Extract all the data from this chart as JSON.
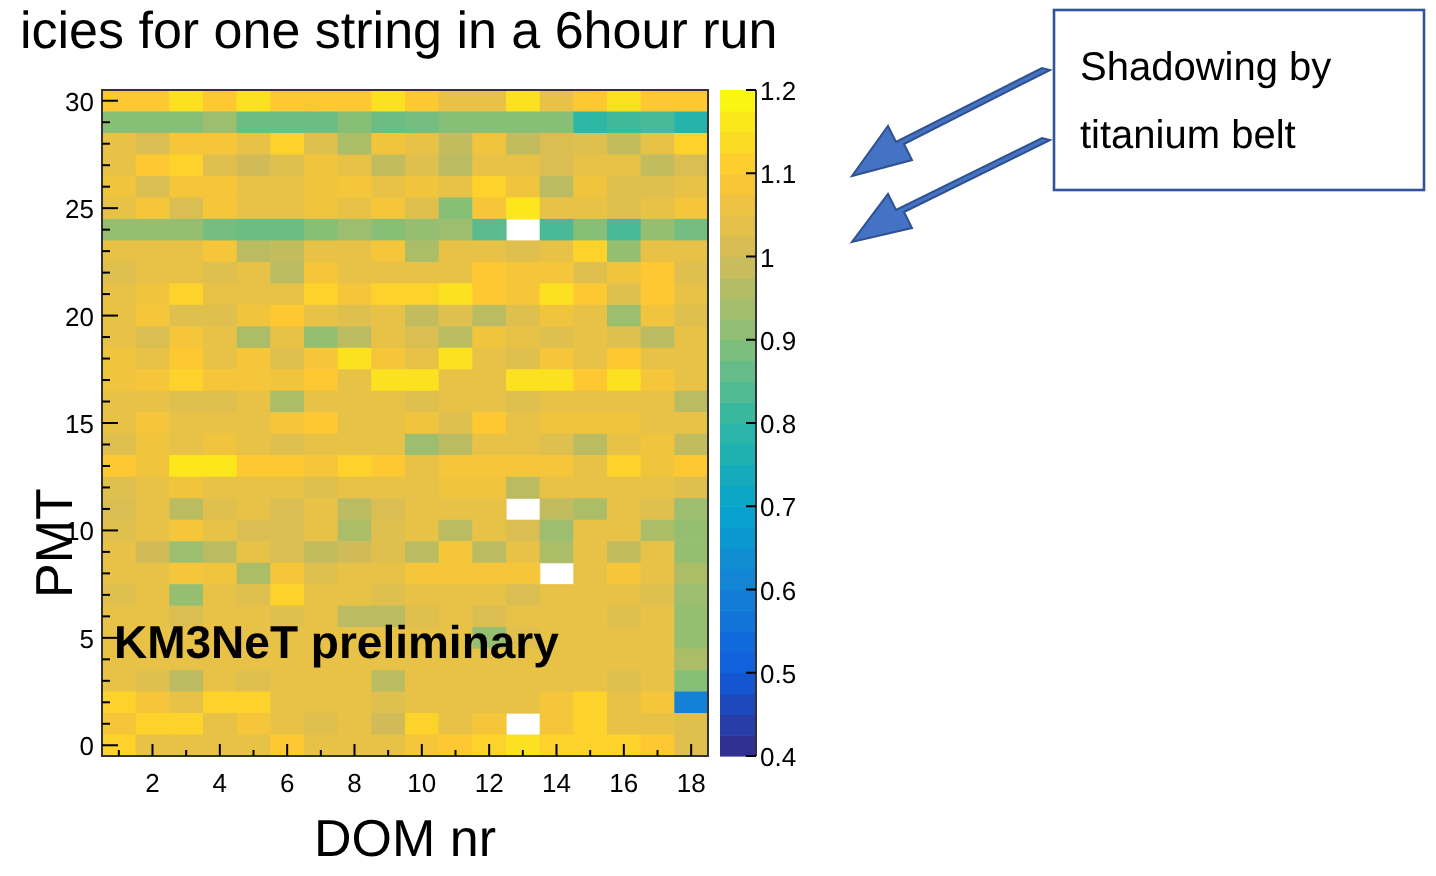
{
  "chart_data": {
    "type": "heatmap",
    "title": "icies for one string in a 6hour run",
    "xlabel": "DOM nr",
    "ylabel": "PMT",
    "annotations": [
      "KM3NeT preliminary",
      "Shadowing by titanium belt"
    ],
    "categories": [
      null,
      "2",
      null,
      "4",
      null,
      "6",
      null,
      "8",
      null,
      "10",
      null,
      "12",
      null,
      "14",
      null,
      "16",
      null,
      "18"
    ],
    "y_categories": [
      "30",
      null,
      null,
      null,
      null,
      "25",
      null,
      null,
      null,
      null,
      "20",
      null,
      null,
      null,
      null,
      "15",
      null,
      null,
      null,
      null,
      "10",
      null,
      null,
      null,
      null,
      "5",
      null,
      null,
      null,
      null,
      "0"
    ],
    "clim": [
      0.4,
      1.2
    ],
    "cticks": [
      0.4,
      0.5,
      0.6,
      0.7,
      0.8,
      0.9,
      1,
      1.1,
      1.2
    ],
    "cells": [
      [
        1.1,
        1.1,
        1.15,
        1.1,
        1.15,
        1.1,
        1.1,
        1.1,
        1.15,
        1.1,
        1.05,
        1.05,
        1.15,
        1.05,
        1.1,
        1.15,
        1.1,
        1.1
      ],
      [
        0.9,
        0.9,
        0.9,
        0.93,
        0.87,
        0.87,
        0.87,
        0.9,
        0.87,
        0.88,
        0.9,
        0.9,
        0.9,
        0.9,
        0.8,
        0.82,
        0.83,
        0.78
      ],
      [
        1.05,
        1.02,
        1.08,
        1.08,
        1.05,
        1.12,
        1.03,
        0.95,
        1.07,
        1.05,
        0.98,
        1.07,
        0.98,
        1.02,
        1.03,
        0.98,
        1.05,
        1.12
      ],
      [
        1.05,
        1.1,
        1.12,
        1.03,
        1.0,
        1.03,
        1.07,
        1.05,
        0.98,
        1.03,
        0.97,
        1.05,
        1.05,
        1.02,
        1.05,
        1.05,
        0.98,
        1.02
      ],
      [
        1.07,
        1.02,
        1.08,
        1.08,
        1.05,
        1.05,
        1.07,
        1.08,
        1.05,
        1.07,
        1.05,
        1.12,
        1.07,
        0.97,
        1.07,
        1.03,
        1.03,
        1.05
      ],
      [
        1.05,
        1.08,
        1.02,
        1.08,
        1.05,
        1.05,
        1.07,
        1.05,
        1.08,
        1.03,
        0.9,
        1.08,
        1.16,
        1.05,
        1.05,
        1.03,
        1.05,
        1.08
      ],
      [
        0.92,
        0.92,
        0.92,
        0.88,
        0.87,
        0.87,
        0.9,
        0.93,
        0.9,
        0.92,
        0.93,
        0.85,
        null,
        0.83,
        0.9,
        0.83,
        0.92,
        0.88
      ],
      [
        1.05,
        1.05,
        1.05,
        1.08,
        0.97,
        0.98,
        1.05,
        1.05,
        1.08,
        0.95,
        1.05,
        1.05,
        1.03,
        1.05,
        1.12,
        0.92,
        1.05,
        1.05
      ],
      [
        1.03,
        1.05,
        1.05,
        1.03,
        1.05,
        0.97,
        1.08,
        1.05,
        1.05,
        1.05,
        1.05,
        1.1,
        1.08,
        1.08,
        1.03,
        1.07,
        1.1,
        1.03
      ],
      [
        1.05,
        1.07,
        1.12,
        1.05,
        1.05,
        1.05,
        1.12,
        1.08,
        1.12,
        1.12,
        1.15,
        1.1,
        1.08,
        1.15,
        1.1,
        1.03,
        1.1,
        1.05
      ],
      [
        1.05,
        1.08,
        1.03,
        1.03,
        1.07,
        1.1,
        1.05,
        1.03,
        1.05,
        0.98,
        1.03,
        0.97,
        1.03,
        1.07,
        1.05,
        0.93,
        1.07,
        1.03
      ],
      [
        1.05,
        1.02,
        1.08,
        1.05,
        0.95,
        1.05,
        0.92,
        0.97,
        1.05,
        1.02,
        0.97,
        1.07,
        1.05,
        1.03,
        1.05,
        1.03,
        0.97,
        1.05
      ],
      [
        1.07,
        1.05,
        1.1,
        1.05,
        1.08,
        1.03,
        1.08,
        1.15,
        1.08,
        1.05,
        1.15,
        1.05,
        1.03,
        1.08,
        1.05,
        1.1,
        1.05,
        1.05
      ],
      [
        1.07,
        1.08,
        1.12,
        1.08,
        1.08,
        1.07,
        1.1,
        1.05,
        1.15,
        1.15,
        1.05,
        1.05,
        1.15,
        1.15,
        1.1,
        1.15,
        1.08,
        1.05
      ],
      [
        1.05,
        1.05,
        1.03,
        1.03,
        1.05,
        0.95,
        1.05,
        1.05,
        1.05,
        1.03,
        1.05,
        1.05,
        1.03,
        1.05,
        1.05,
        1.05,
        1.05,
        0.97
      ],
      [
        1.05,
        1.08,
        1.05,
        1.05,
        1.05,
        1.08,
        1.1,
        1.05,
        1.05,
        1.07,
        1.03,
        1.1,
        1.05,
        1.07,
        1.07,
        1.07,
        1.05,
        1.05
      ],
      [
        1.03,
        1.07,
        1.05,
        1.07,
        1.05,
        1.03,
        1.05,
        1.05,
        1.05,
        0.93,
        0.97,
        1.05,
        1.05,
        1.03,
        0.97,
        1.05,
        1.07,
        0.98
      ],
      [
        1.1,
        1.07,
        1.16,
        1.16,
        1.1,
        1.1,
        1.08,
        1.12,
        1.1,
        1.05,
        1.08,
        1.08,
        1.08,
        1.08,
        1.05,
        1.12,
        1.07,
        1.1
      ],
      [
        1.03,
        1.05,
        1.07,
        1.05,
        1.05,
        1.05,
        1.03,
        1.05,
        1.05,
        1.05,
        1.07,
        1.07,
        0.97,
        1.05,
        1.05,
        1.05,
        1.05,
        1.03
      ],
      [
        1.02,
        1.05,
        0.97,
        1.03,
        1.05,
        1.02,
        1.05,
        0.97,
        1.02,
        1.05,
        1.05,
        1.05,
        null,
        0.98,
        0.95,
        1.05,
        1.03,
        0.93
      ],
      [
        1.03,
        1.05,
        1.08,
        1.05,
        1.02,
        1.02,
        1.05,
        0.95,
        1.03,
        1.05,
        0.97,
        1.05,
        1.02,
        0.93,
        1.05,
        1.05,
        0.95,
        0.92
      ],
      [
        1.05,
        1.0,
        0.93,
        0.97,
        1.05,
        1.02,
        0.98,
        1.0,
        1.03,
        0.97,
        1.08,
        0.97,
        1.05,
        0.95,
        1.05,
        0.98,
        1.05,
        0.92
      ],
      [
        1.05,
        1.05,
        1.08,
        1.07,
        0.95,
        1.08,
        1.03,
        1.05,
        1.05,
        1.08,
        1.08,
        1.08,
        1.08,
        null,
        1.05,
        1.08,
        1.05,
        0.95
      ],
      [
        1.03,
        1.05,
        0.92,
        1.05,
        1.03,
        1.12,
        1.05,
        1.05,
        1.03,
        1.05,
        1.05,
        1.05,
        1.02,
        1.05,
        1.05,
        1.05,
        1.03,
        0.93
      ],
      [
        1.05,
        1.05,
        1.02,
        1.05,
        1.05,
        1.03,
        1.05,
        0.97,
        0.97,
        1.03,
        1.05,
        1.02,
        1.05,
        1.05,
        1.05,
        1.03,
        1.05,
        0.92
      ],
      [
        1.05,
        1.05,
        1.05,
        1.05,
        1.05,
        1.05,
        1.05,
        1.05,
        1.05,
        1.05,
        1.05,
        0.92,
        1.03,
        1.05,
        1.05,
        1.05,
        1.05,
        0.92
      ],
      [
        1.05,
        1.05,
        1.05,
        1.05,
        1.05,
        1.05,
        1.05,
        1.05,
        1.05,
        1.05,
        1.05,
        1.05,
        1.05,
        1.05,
        1.05,
        1.05,
        1.05,
        0.95
      ],
      [
        1.05,
        1.03,
        0.97,
        1.05,
        1.03,
        1.05,
        1.05,
        1.05,
        0.97,
        1.05,
        1.05,
        1.05,
        1.05,
        1.05,
        1.05,
        1.03,
        1.05,
        0.9
      ],
      [
        1.12,
        1.08,
        1.05,
        1.12,
        1.12,
        1.05,
        1.05,
        1.05,
        1.03,
        1.05,
        1.05,
        1.05,
        1.05,
        1.08,
        1.12,
        1.05,
        1.08,
        0.6
      ],
      [
        1.08,
        1.12,
        1.12,
        1.05,
        1.08,
        1.05,
        1.03,
        1.05,
        1.0,
        1.12,
        1.05,
        1.08,
        null,
        1.08,
        1.12,
        1.05,
        1.05,
        1.03
      ],
      [
        1.12,
        1.05,
        1.05,
        1.05,
        1.05,
        1.1,
        1.05,
        1.05,
        1.05,
        1.08,
        1.1,
        1.12,
        1.15,
        1.12,
        1.12,
        1.12,
        1.1,
        1.03
      ]
    ]
  }
}
